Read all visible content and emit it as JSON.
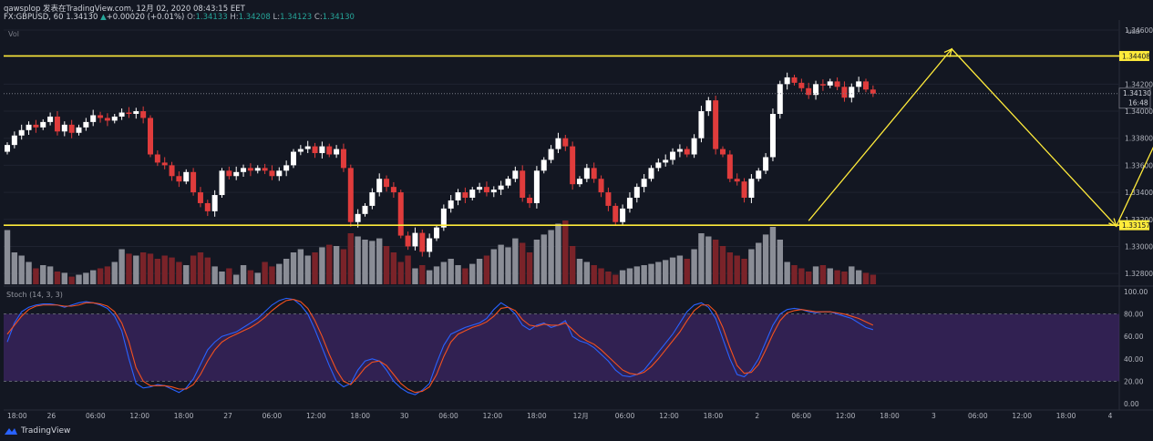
{
  "header": {
    "author_line": "qawsplop 发表在TradingView.com, 12月 02, 2020 08:43:15 EET",
    "symbol": "FX:GBPUSD, 60",
    "last": "1.34130",
    "change_arrow": "▲",
    "change": "+0.00020 (+0.01%)",
    "o_label": "O:",
    "o": "1.34133",
    "h_label": "H:",
    "h": "1.34208",
    "l_label": "L:",
    "l": "1.34123",
    "c_label": "C:",
    "c": "1.34130"
  },
  "volume_label": "Vol",
  "stoch_label": "Stoch (14, 3, 3)",
  "brand": "TradingView",
  "colors": {
    "bg": "#131722",
    "up": "#ffffff",
    "down": "#e03c3c",
    "level": "#ffeb3b",
    "k": "#2962ff",
    "d": "#f4511e",
    "band": "#4a2a7a"
  },
  "chart_data": [
    {
      "type": "candlestick",
      "title": "",
      "currency": "USD",
      "y_ticks": [
        "1.34600",
        "1.34200",
        "1.34000",
        "1.33800",
        "1.33600",
        "1.33400",
        "1.33200",
        "1.33000",
        "1.32800"
      ],
      "ylim": [
        1.3272,
        1.3462
      ],
      "x_ticks": [
        "18:00",
        "26",
        "06:00",
        "12:00",
        "18:00",
        "27",
        "06:00",
        "12:00",
        "18:00",
        "30",
        "06:00",
        "12:00",
        "18:00",
        "12月",
        "06:00",
        "12:00",
        "18:00",
        "2",
        "06:00",
        "12:00",
        "18:00",
        "3",
        "06:00",
        "12:00",
        "18:00",
        "4"
      ],
      "levels": [
        {
          "price": 1.34408,
          "label": "1.34408",
          "color": "#ffeb3b"
        },
        {
          "price": 1.33157,
          "label": "1.33157",
          "color": "#ffeb3b"
        }
      ],
      "last_price": {
        "price": 1.3413,
        "label": "1.34130",
        "countdown": "16:48"
      },
      "annotation_path": [
        {
          "bar": 112,
          "price": 1.3319
        },
        {
          "bar": 132,
          "price": 1.3446
        },
        {
          "bar": 155,
          "price": 1.3315
        },
        {
          "bar": 166,
          "price": 1.3439
        }
      ],
      "candles_close": [
        1.3375,
        1.3382,
        1.3386,
        1.339,
        1.3388,
        1.3392,
        1.3396,
        1.3385,
        1.339,
        1.3384,
        1.3388,
        1.3392,
        1.3397,
        1.3395,
        1.3393,
        1.3396,
        1.3399,
        1.3398,
        1.34,
        1.3395,
        1.3368,
        1.3362,
        1.336,
        1.3352,
        1.3348,
        1.3355,
        1.334,
        1.3332,
        1.3326,
        1.3338,
        1.3356,
        1.3352,
        1.3355,
        1.3358,
        1.3356,
        1.3358,
        1.3356,
        1.3352,
        1.3356,
        1.336,
        1.337,
        1.3372,
        1.3374,
        1.3369,
        1.3374,
        1.3368,
        1.3372,
        1.3358,
        1.3318,
        1.3324,
        1.333,
        1.334,
        1.335,
        1.3344,
        1.334,
        1.3308,
        1.33,
        1.331,
        1.3296,
        1.3306,
        1.3314,
        1.3328,
        1.3334,
        1.334,
        1.3336,
        1.3342,
        1.3344,
        1.334,
        1.3342,
        1.3345,
        1.335,
        1.3356,
        1.3336,
        1.3332,
        1.3356,
        1.3364,
        1.3372,
        1.338,
        1.3374,
        1.3346,
        1.335,
        1.3358,
        1.335,
        1.334,
        1.333,
        1.3318,
        1.3328,
        1.3336,
        1.3344,
        1.335,
        1.3358,
        1.3362,
        1.3364,
        1.337,
        1.3372,
        1.3368,
        1.338,
        1.34,
        1.3408,
        1.3372,
        1.3368,
        1.335,
        1.3348,
        1.3336,
        1.335,
        1.3356,
        1.3366,
        1.3398,
        1.342,
        1.3425,
        1.3421,
        1.3417,
        1.3412,
        1.342,
        1.3419,
        1.3422,
        1.3418,
        1.341,
        1.3418,
        1.3422,
        1.3416,
        1.3413
      ],
      "volume_relative": [
        0.85,
        0.5,
        0.45,
        0.35,
        0.25,
        0.3,
        0.28,
        0.2,
        0.18,
        0.12,
        0.15,
        0.18,
        0.22,
        0.25,
        0.28,
        0.35,
        0.55,
        0.48,
        0.45,
        0.5,
        0.48,
        0.4,
        0.45,
        0.42,
        0.35,
        0.3,
        0.45,
        0.5,
        0.42,
        0.28,
        0.2,
        0.25,
        0.15,
        0.3,
        0.22,
        0.18,
        0.35,
        0.28,
        0.32,
        0.4,
        0.5,
        0.55,
        0.45,
        0.5,
        0.58,
        0.62,
        0.6,
        0.55,
        0.8,
        0.75,
        0.7,
        0.68,
        0.72,
        0.6,
        0.5,
        0.35,
        0.45,
        0.25,
        0.3,
        0.22,
        0.28,
        0.35,
        0.4,
        0.3,
        0.25,
        0.32,
        0.4,
        0.45,
        0.55,
        0.62,
        0.58,
        0.72,
        0.65,
        0.5,
        0.7,
        0.78,
        0.85,
        0.95,
        1.0,
        0.6,
        0.4,
        0.35,
        0.3,
        0.25,
        0.2,
        0.15,
        0.22,
        0.25,
        0.28,
        0.3,
        0.32,
        0.35,
        0.38,
        0.42,
        0.45,
        0.4,
        0.55,
        0.8,
        0.75,
        0.7,
        0.6,
        0.5,
        0.45,
        0.4,
        0.55,
        0.65,
        0.78,
        0.9,
        0.7,
        0.35,
        0.3,
        0.25,
        0.2,
        0.28,
        0.3,
        0.25,
        0.22,
        0.2,
        0.28,
        0.22,
        0.18,
        0.15
      ]
    },
    {
      "type": "line",
      "title": "",
      "y_ticks": [
        "100.00",
        "80.00",
        "60.00",
        "40.00",
        "20.00",
        "0.00"
      ],
      "ylim": [
        0,
        100
      ],
      "bands": [
        80,
        20
      ],
      "series": [
        {
          "values": [
            55,
            72,
            82,
            86,
            88,
            89,
            89,
            88,
            86,
            88,
            90,
            91,
            90,
            88,
            85,
            78,
            65,
            40,
            18,
            14,
            15,
            17,
            16,
            13,
            10,
            14,
            22,
            35,
            48,
            55,
            60,
            62,
            64,
            68,
            72,
            76,
            82,
            88,
            92,
            94,
            93,
            88,
            80,
            66,
            50,
            34,
            20,
            15,
            18,
            30,
            38,
            40,
            38,
            30,
            20,
            14,
            10,
            8,
            12,
            18,
            36,
            52,
            62,
            65,
            68,
            70,
            72,
            76,
            84,
            90,
            86,
            80,
            70,
            66,
            70,
            72,
            68,
            70,
            74,
            60,
            56,
            54,
            50,
            44,
            38,
            30,
            25,
            24,
            26,
            30,
            38,
            46,
            54,
            62,
            72,
            82,
            88,
            90,
            86,
            76,
            58,
            40,
            26,
            24,
            30,
            40,
            55,
            70,
            80,
            84,
            85,
            84,
            82,
            81,
            82,
            82,
            80,
            78,
            76,
            72,
            68,
            66
          ]
        },
        {
          "values": [
            62,
            70,
            78,
            84,
            87,
            88,
            88,
            88,
            87,
            87,
            88,
            90,
            90,
            89,
            87,
            82,
            72,
            55,
            32,
            20,
            16,
            16,
            16,
            15,
            13,
            13,
            17,
            26,
            38,
            48,
            55,
            59,
            62,
            65,
            68,
            72,
            77,
            83,
            88,
            92,
            93,
            91,
            85,
            74,
            60,
            44,
            30,
            20,
            17,
            24,
            32,
            37,
            38,
            34,
            26,
            18,
            13,
            10,
            11,
            15,
            26,
            42,
            55,
            62,
            65,
            68,
            70,
            73,
            78,
            85,
            86,
            83,
            75,
            70,
            69,
            71,
            70,
            70,
            72,
            66,
            60,
            56,
            53,
            48,
            42,
            36,
            30,
            27,
            26,
            28,
            33,
            40,
            48,
            56,
            64,
            74,
            83,
            88,
            88,
            82,
            68,
            50,
            34,
            27,
            28,
            35,
            48,
            62,
            74,
            81,
            83,
            84,
            83,
            82,
            82,
            82,
            81,
            80,
            78,
            76,
            73,
            70
          ]
        }
      ]
    }
  ]
}
